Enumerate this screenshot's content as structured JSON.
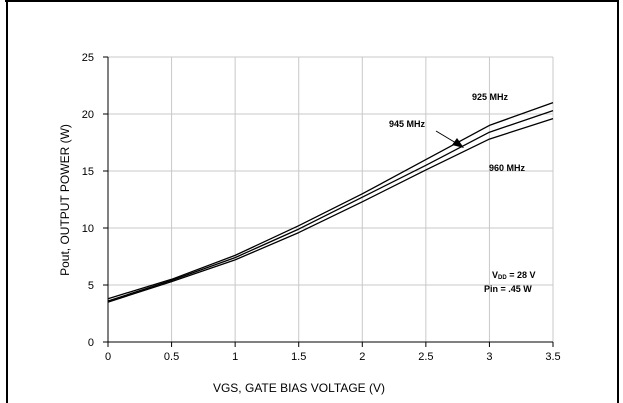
{
  "chart_data": {
    "type": "line",
    "title": "",
    "xlabel": "VGS, GATE BIAS VOLTAGE (V)",
    "ylabel": "Pout, OUTPUT POWER (W)",
    "xlim": [
      0,
      3.5
    ],
    "ylim": [
      0,
      25
    ],
    "x_ticks": [
      "0",
      "0.5",
      "1",
      "1.5",
      "2",
      "2.5",
      "3",
      "3.5"
    ],
    "y_ticks": [
      "0",
      "5",
      "10",
      "15",
      "20",
      "25"
    ],
    "grid": true,
    "series": [
      {
        "name": "925 MHz",
        "x": [
          0,
          0.5,
          1,
          1.5,
          2,
          2.5,
          3,
          3.5
        ],
        "y": [
          3.8,
          5.5,
          7.6,
          10.2,
          13.0,
          16.0,
          19.0,
          21.0
        ]
      },
      {
        "name": "945 MHz",
        "x": [
          0,
          0.5,
          1,
          1.5,
          2,
          2.5,
          3,
          3.5
        ],
        "y": [
          3.6,
          5.4,
          7.4,
          9.9,
          12.7,
          15.5,
          18.4,
          20.3
        ]
      },
      {
        "name": "960 MHz",
        "x": [
          0,
          0.5,
          1,
          1.5,
          2,
          2.5,
          3,
          3.5
        ],
        "y": [
          3.5,
          5.3,
          7.2,
          9.6,
          12.3,
          15.1,
          17.8,
          19.6
        ]
      }
    ],
    "annotations": {
      "vdd": "V",
      "vdd_sub": "DD",
      "vdd_value": " = 28 V",
      "pin": "Pin = .45 W"
    }
  }
}
